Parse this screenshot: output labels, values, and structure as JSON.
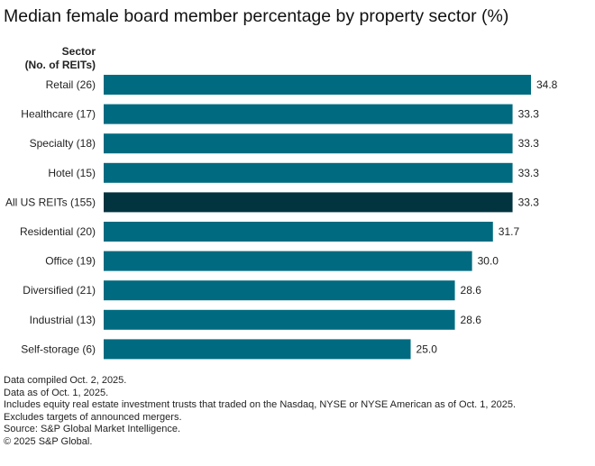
{
  "title": "Median female board member percentage by property sector (%)",
  "axis_header": [
    "Sector",
    "(No. of REITs)"
  ],
  "colors": {
    "bar": "#006b80",
    "highlight": "#02343f"
  },
  "chart_data": {
    "type": "bar",
    "orientation": "horizontal",
    "title": "Median female board member percentage by property sector (%)",
    "ylabel": "Sector (No. of REITs)",
    "xlabel": "",
    "xlim": [
      0,
      36
    ],
    "grid": false,
    "categories": [
      "Retail (26)",
      "Healthcare (17)",
      "Specialty (18)",
      "Hotel (15)",
      "All US REITs (155)",
      "Residential (20)",
      "Office (19)",
      "Diversified (21)",
      "Industrial (13)",
      "Self-storage (6)"
    ],
    "values": [
      34.8,
      33.3,
      33.3,
      33.3,
      33.3,
      31.7,
      30.0,
      28.6,
      28.6,
      25.0
    ],
    "value_labels": [
      "34.8",
      "33.3",
      "33.3",
      "33.3",
      "33.3",
      "31.7",
      "30.0",
      "28.6",
      "28.6",
      "25.0"
    ],
    "highlight_index": 4
  },
  "notes": [
    "Data compiled Oct. 2, 2025.",
    "Data as of Oct. 1, 2025.",
    "Includes equity real estate investment trusts that traded on the Nasdaq, NYSE or NYSE American as of Oct. 1, 2025.",
    "Excludes targets of announced mergers.",
    "Source: S&P Global Market Intelligence.",
    "© 2025 S&P Global."
  ]
}
